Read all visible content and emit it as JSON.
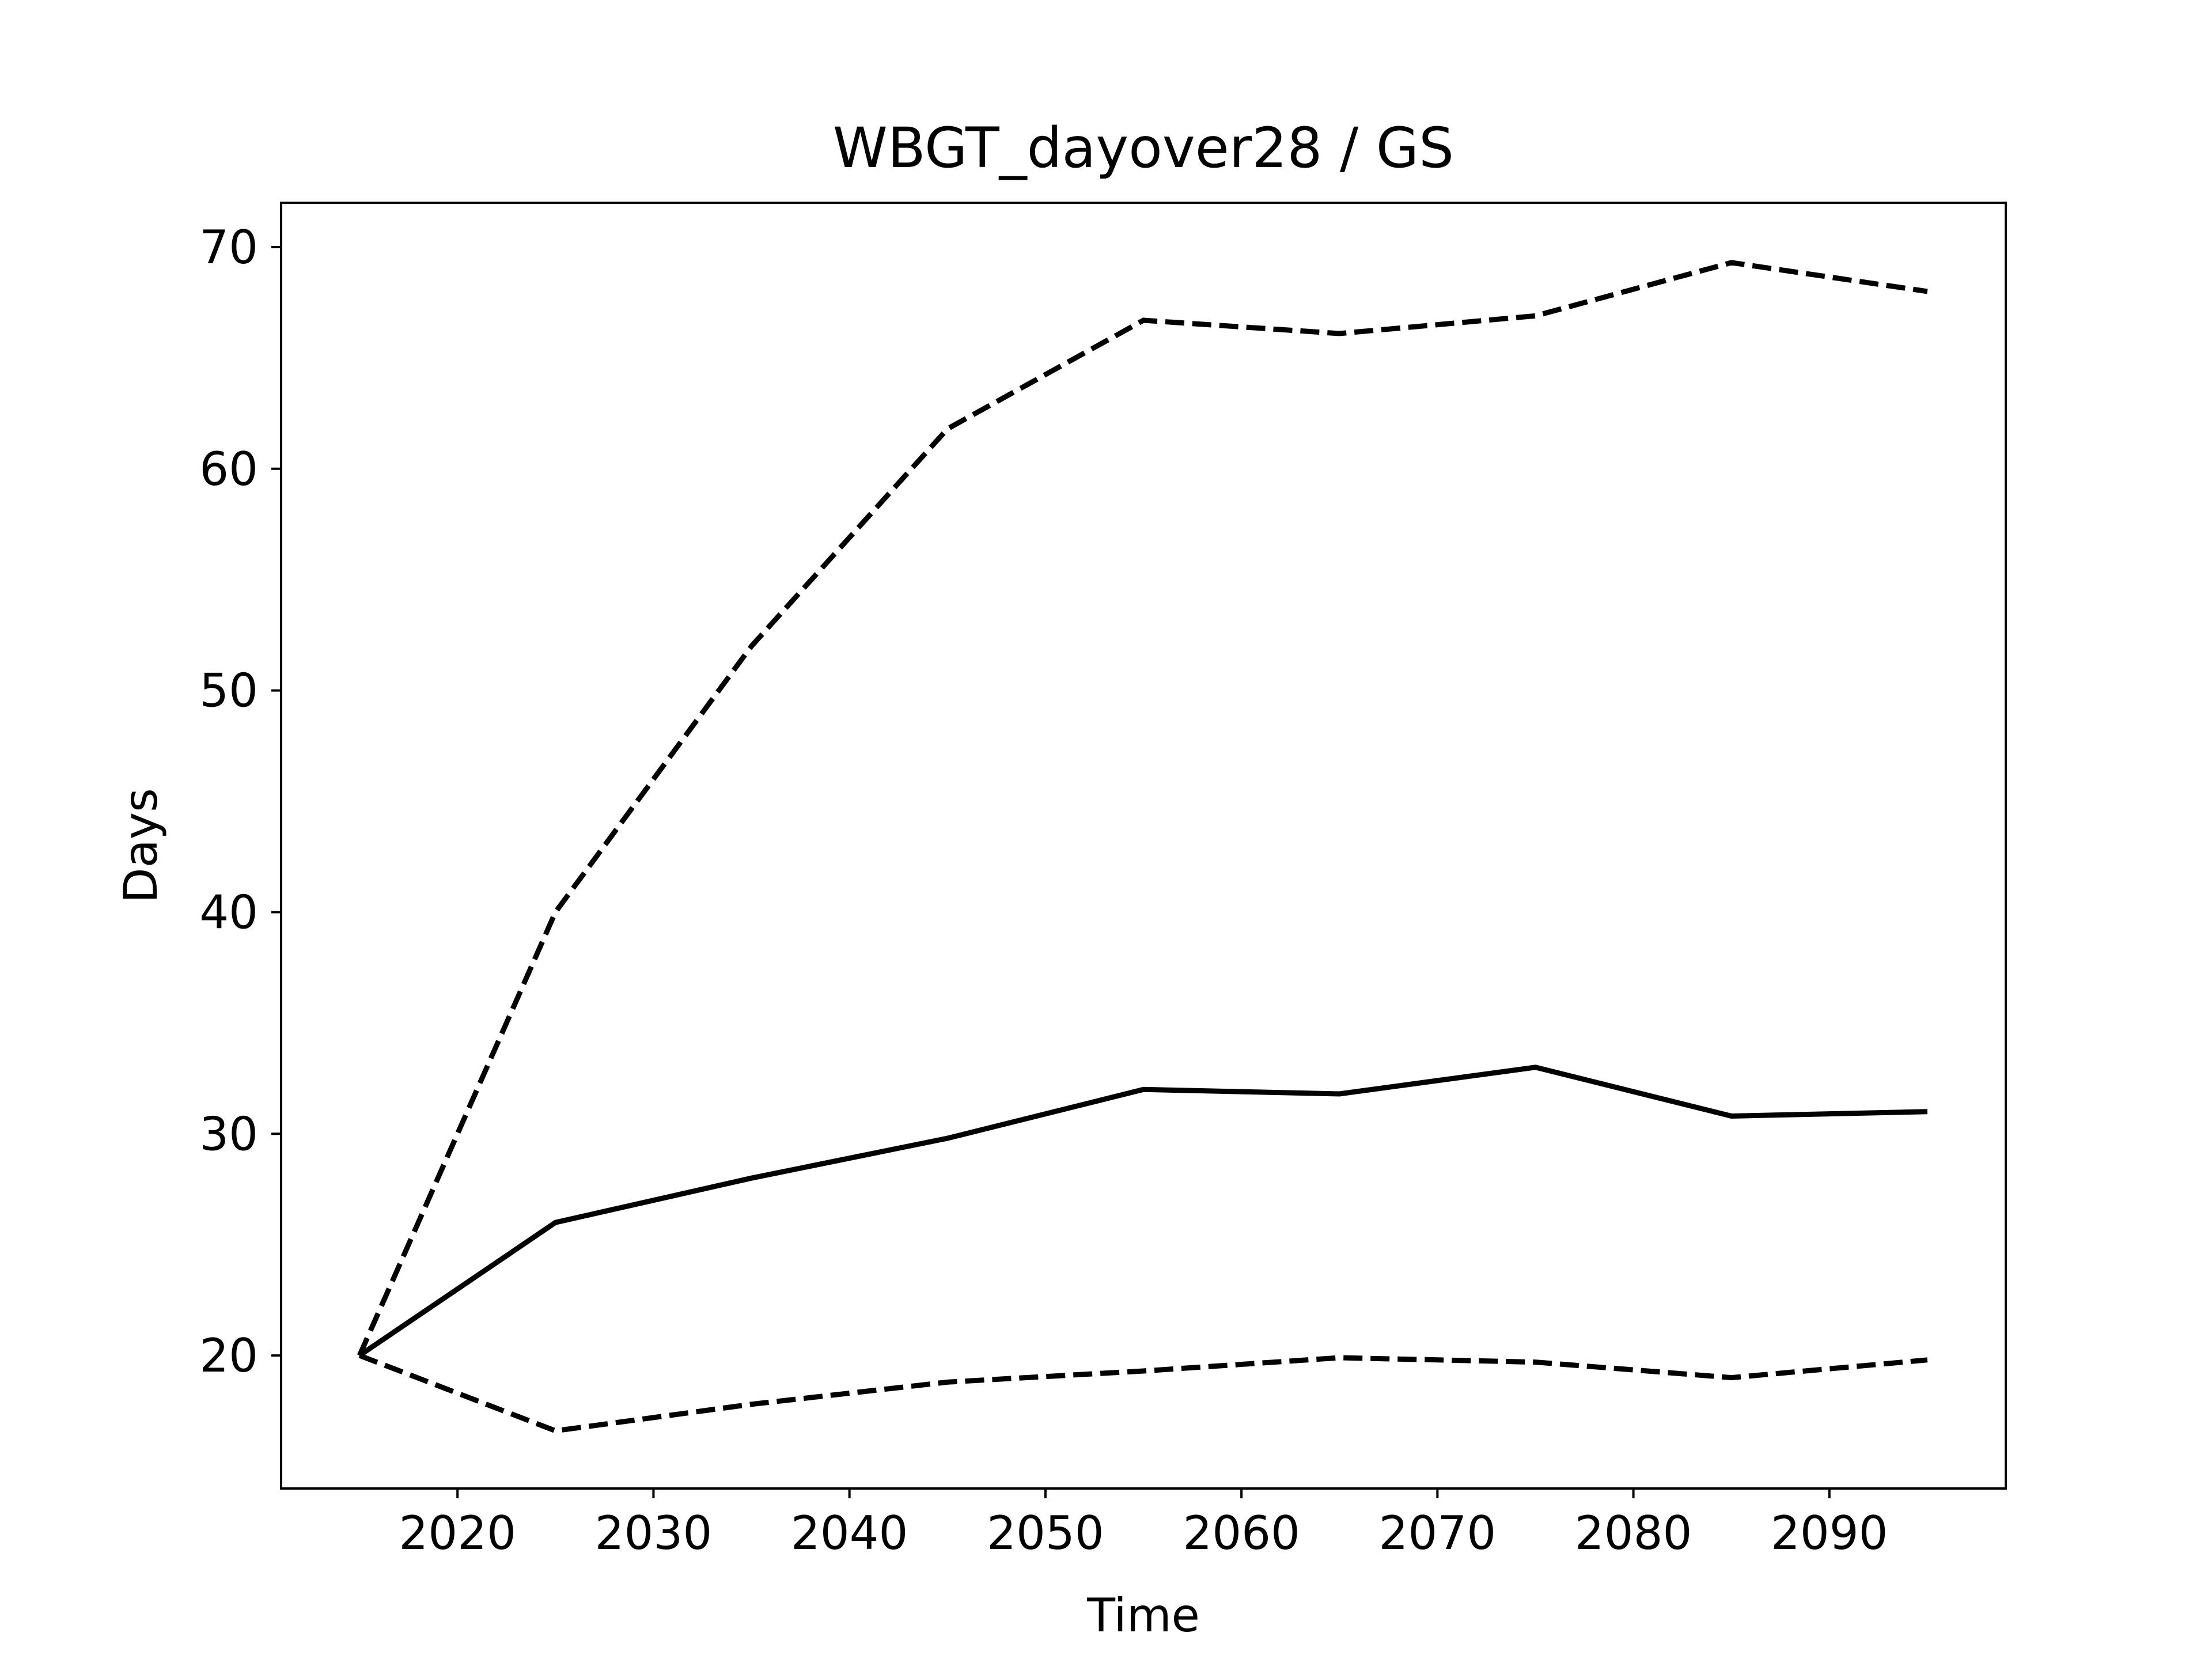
{
  "chart_data": {
    "type": "line",
    "title": "WBGT_dayover28 / GS",
    "xlabel": "Time",
    "ylabel": "Days",
    "xlim": [
      2011,
      2099
    ],
    "ylim": [
      14,
      72
    ],
    "xticks": [
      2020,
      2030,
      2040,
      2050,
      2060,
      2070,
      2080,
      2090
    ],
    "yticks": [
      20,
      30,
      40,
      50,
      60,
      70
    ],
    "grid": false,
    "legend": "none",
    "x": [
      2015,
      2025,
      2035,
      2045,
      2055,
      2065,
      2075,
      2085,
      2095
    ],
    "series": [
      {
        "style": "dashed",
        "color": "#000000",
        "values": [
          20.0,
          40.0,
          52.0,
          61.8,
          66.7,
          66.1,
          66.9,
          69.3,
          68.0
        ]
      },
      {
        "style": "solid",
        "color": "#000000",
        "values": [
          20.0,
          26.0,
          28.0,
          29.8,
          32.0,
          31.8,
          33.0,
          30.8,
          31.0
        ]
      },
      {
        "style": "dashed",
        "color": "#000000",
        "values": [
          20.0,
          16.6,
          17.8,
          18.8,
          19.3,
          19.9,
          19.7,
          19.0,
          19.8
        ]
      }
    ]
  }
}
